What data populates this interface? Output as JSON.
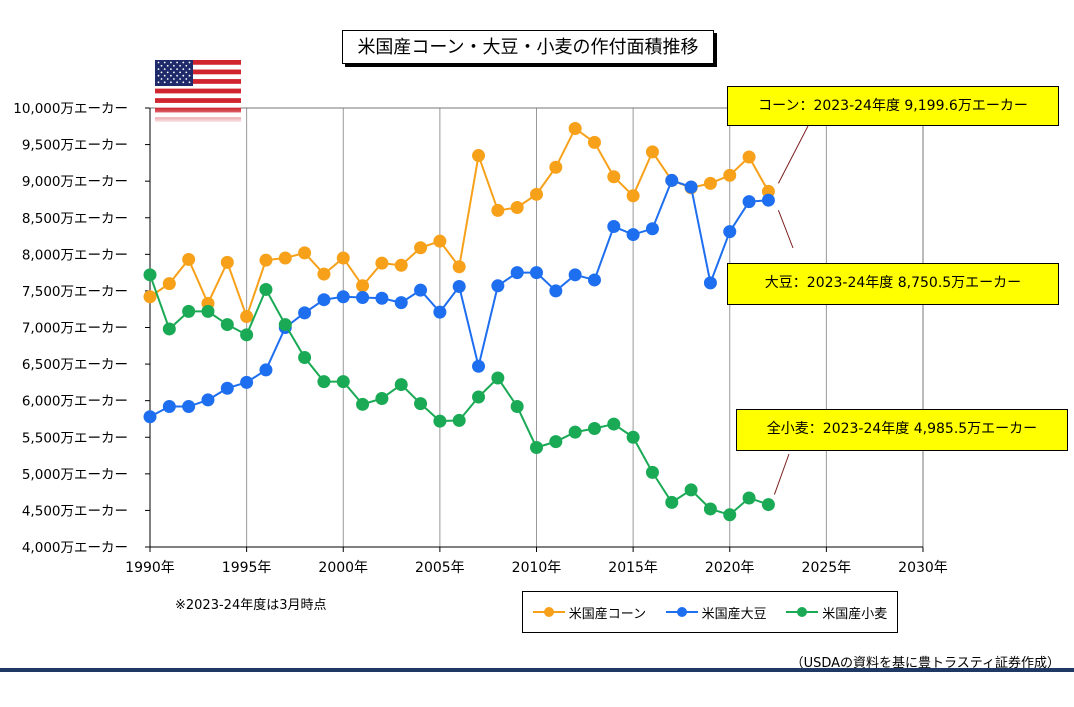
{
  "title": "米国産コーン・大豆・小麦の作付面積推移",
  "note": "※2023-24年度は3月時点",
  "source": "（USDAの資料を基に豊トラスティ証券作成）",
  "callouts": {
    "corn": "コーン：2023-24年度  9,199.6万エーカー",
    "soy": "大豆：2023-24年度  8,750.5万エーカー",
    "wheat": "全小麦：2023-24年度  4,985.5万エーカー"
  },
  "colors": {
    "corn": "#f7a11a",
    "soy": "#1e6ef0",
    "wheat": "#1aaa55",
    "grid": "#999999"
  },
  "chart_data": {
    "type": "line",
    "x": [
      1990,
      1991,
      1992,
      1993,
      1994,
      1995,
      1996,
      1997,
      1998,
      1999,
      2000,
      2001,
      2002,
      2003,
      2004,
      2005,
      2006,
      2007,
      2008,
      2009,
      2010,
      2011,
      2012,
      2013,
      2014,
      2015,
      2016,
      2017,
      2018,
      2019,
      2020,
      2021,
      2022
    ],
    "series": [
      {
        "name": "米国産コーン",
        "values": [
          7420,
          7600,
          7930,
          7330,
          7890,
          7150,
          7920,
          7950,
          8020,
          7730,
          7950,
          7570,
          7880,
          7850,
          8090,
          8180,
          7830,
          9350,
          8600,
          8640,
          8820,
          9190,
          9720,
          9530,
          9060,
          8800,
          9400,
          9010,
          8910,
          8970,
          9080,
          9330,
          8860
        ]
      },
      {
        "name": "米国産大豆",
        "values": [
          5780,
          5920,
          5920,
          6010,
          6170,
          6250,
          6420,
          7000,
          7200,
          7380,
          7420,
          7410,
          7400,
          7340,
          7510,
          7210,
          7560,
          6470,
          7570,
          7750,
          7750,
          7500,
          7720,
          7650,
          8380,
          8270,
          8350,
          9010,
          8920,
          7610,
          8310,
          8720,
          8740
        ]
      },
      {
        "name": "米国産小麦",
        "values": [
          7720,
          6980,
          7220,
          7220,
          7040,
          6900,
          7520,
          7040,
          6590,
          6260,
          6260,
          5950,
          6030,
          6220,
          5960,
          5720,
          5730,
          6050,
          6310,
          5920,
          5360,
          5440,
          5570,
          5620,
          5680,
          5500,
          5020,
          4610,
          4780,
          4520,
          4440,
          4670,
          4580
        ]
      }
    ],
    "y_ticks": [
      "4,000万エーカー",
      "4,500万エーカー",
      "5,000万エーカー",
      "5,500万エーカー",
      "6,000万エーカー",
      "6,500万エーカー",
      "7,000万エーカー",
      "7,500万エーカー",
      "8,000万エーカー",
      "8,500万エーカー",
      "9,000万エーカー",
      "9,500万エーカー",
      "10,000万エーカー"
    ],
    "x_ticks": [
      "1990年",
      "1995年",
      "2000年",
      "2005年",
      "2010年",
      "2015年",
      "2020年",
      "2025年",
      "2030年"
    ],
    "xlim": [
      1990,
      2030
    ],
    "ylim": [
      4000,
      10000
    ],
    "grid": "vertical"
  }
}
